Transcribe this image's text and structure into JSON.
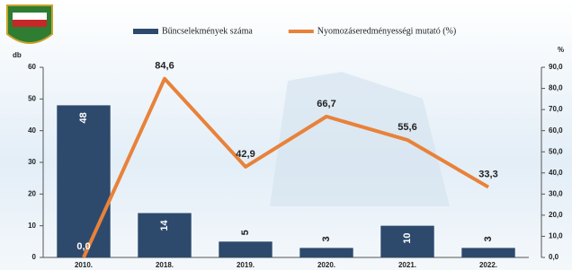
{
  "chart_data": {
    "type": "combo",
    "categories": [
      "2010.",
      "2018.",
      "2019.",
      "2020.",
      "2021.",
      "2022."
    ],
    "series": [
      {
        "name": "Bűncselekmények száma",
        "type": "bar",
        "color": "#2d4a6d",
        "values": [
          48,
          14,
          5,
          3,
          10,
          3
        ]
      },
      {
        "name": "Nyomozáseredményességi mutató (%)",
        "type": "line",
        "axis": "y2",
        "color": "#e8823a",
        "values": [
          0,
          84.6,
          42.9,
          66.7,
          55.6,
          33.3
        ],
        "value_labels": [
          "0,0",
          "84,6",
          "42,9",
          "66,7",
          "55,6",
          "33,3"
        ]
      }
    ],
    "ylabel": "db",
    "y2label": "%",
    "ylim": [
      0,
      60
    ],
    "yticks": [
      0,
      10,
      20,
      30,
      40,
      50,
      60
    ],
    "y2lim": [
      0,
      90
    ],
    "y2ticks": [
      {
        "value": 0,
        "label": "0,0"
      },
      {
        "value": 10,
        "label": "10,0"
      },
      {
        "value": 20,
        "label": "20,0"
      },
      {
        "value": 30,
        "label": "30,0"
      },
      {
        "value": 40,
        "label": "40,0"
      },
      {
        "value": 50,
        "label": "50,0"
      },
      {
        "value": 60,
        "label": "60,0"
      },
      {
        "value": 70,
        "label": "70,0"
      },
      {
        "value": 80,
        "label": "80,0"
      },
      {
        "value": 90,
        "label": "90,0"
      }
    ]
  }
}
